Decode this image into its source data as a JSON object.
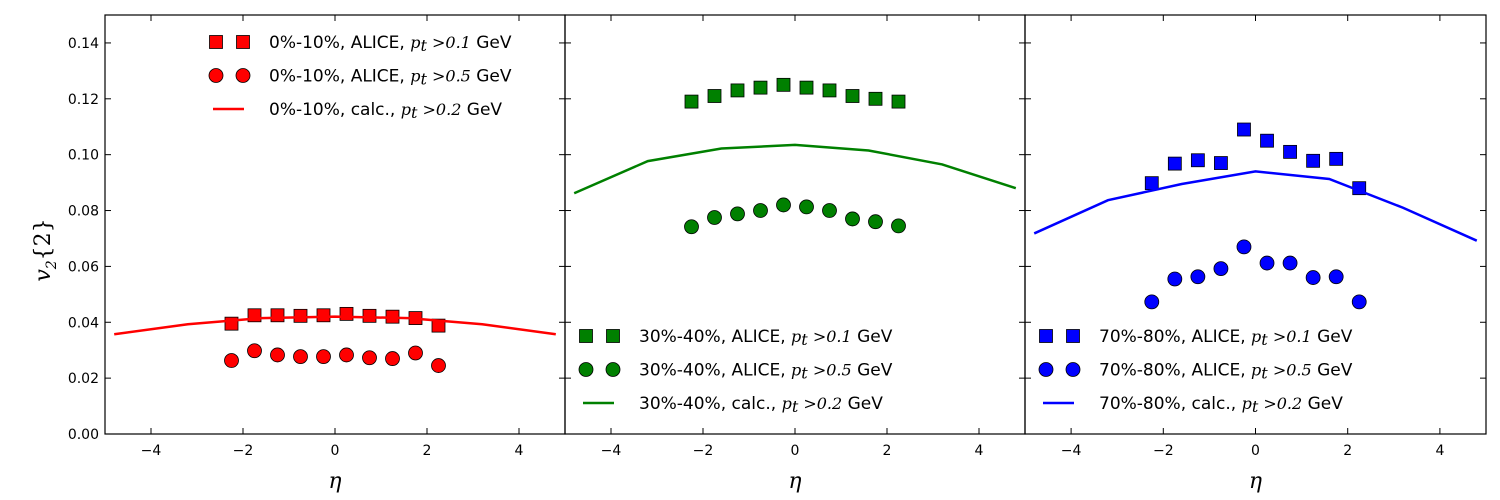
{
  "chart_data": {
    "type": "scatter",
    "ylabel": "v2{2}",
    "ylabel_parts": {
      "main": "v",
      "sub": "2",
      "braces": "{2}"
    },
    "xlabel": "η",
    "xlim": [
      -5,
      5
    ],
    "ylim": [
      0,
      0.15
    ],
    "yticks": [
      "0.00",
      "0.02",
      "0.04",
      "0.06",
      "0.08",
      "0.10",
      "0.12",
      "0.14"
    ],
    "xticks": [
      "−4",
      "−2",
      "0",
      "2",
      "4"
    ],
    "grid": false,
    "panels": [
      {
        "color": "#ff0000",
        "legend_position": "top-right",
        "series": [
          {
            "name": "0%-10%, ALICE, p_t >0.1 GeV",
            "legend": {
              "prefix": "0%-10%, ALICE, ",
              "var": "p",
              "sub": "t",
              "cond": " >0.1",
              "unit": " GeV"
            },
            "marker": "square",
            "x": [
              -2.25,
              -1.75,
              -1.25,
              -0.75,
              -0.25,
              0.25,
              0.75,
              1.25,
              1.75,
              2.25
            ],
            "y": [
              0.0395,
              0.0425,
              0.0425,
              0.0423,
              0.0425,
              0.043,
              0.0423,
              0.042,
              0.0415,
              0.0388
            ]
          },
          {
            "name": "0%-10%, ALICE, p_t >0.5 GeV",
            "legend": {
              "prefix": "0%-10%, ALICE, ",
              "var": "p",
              "sub": "t",
              "cond": " >0.5",
              "unit": " GeV"
            },
            "marker": "circle",
            "x": [
              -2.25,
              -1.75,
              -1.25,
              -0.75,
              -0.25,
              0.25,
              0.75,
              1.25,
              1.75,
              2.25
            ],
            "y": [
              0.0263,
              0.0298,
              0.0283,
              0.0277,
              0.0277,
              0.0283,
              0.0273,
              0.027,
              0.029,
              0.0245
            ]
          },
          {
            "name": "0%-10%, calc., p_t >0.2 GeV",
            "legend": {
              "prefix": "0%-10%, calc., ",
              "var": "p",
              "sub": "t",
              "cond": " >0.2",
              "unit": " GeV"
            },
            "marker": "line",
            "x": [
              -4.8,
              -3.2,
              -1.6,
              0,
              1.6,
              3.2,
              4.8
            ],
            "y": [
              0.0357,
              0.0393,
              0.0415,
              0.042,
              0.0415,
              0.0393,
              0.0357
            ]
          }
        ]
      },
      {
        "color": "#008000",
        "legend_position": "bottom-left",
        "series": [
          {
            "name": "30%-40%, ALICE, p_t >0.1 GeV",
            "legend": {
              "prefix": "30%-40%, ALICE, ",
              "var": "p",
              "sub": "t",
              "cond": " >0.1",
              "unit": " GeV"
            },
            "marker": "square",
            "x": [
              -2.25,
              -1.75,
              -1.25,
              -0.75,
              -0.25,
              0.25,
              0.75,
              1.25,
              1.75,
              2.25
            ],
            "y": [
              0.119,
              0.121,
              0.123,
              0.124,
              0.125,
              0.124,
              0.123,
              0.121,
              0.12,
              0.119
            ]
          },
          {
            "name": "30%-40%, ALICE, p_t >0.5 GeV",
            "legend": {
              "prefix": "30%-40%, ALICE, ",
              "var": "p",
              "sub": "t",
              "cond": " >0.5",
              "unit": " GeV"
            },
            "marker": "circle",
            "x": [
              -2.25,
              -1.75,
              -1.25,
              -0.75,
              -0.25,
              0.25,
              0.75,
              1.25,
              1.75,
              2.25
            ],
            "y": [
              0.0742,
              0.0775,
              0.0788,
              0.08,
              0.082,
              0.0813,
              0.08,
              0.077,
              0.076,
              0.0745
            ]
          },
          {
            "name": "30%-40%, calc., p_t >0.2 GeV",
            "legend": {
              "prefix": "30%-40%, calc., ",
              "var": "p",
              "sub": "t",
              "cond": " >0.2",
              "unit": " GeV"
            },
            "marker": "line",
            "x": [
              -4.8,
              -3.2,
              -1.6,
              0,
              1.6,
              3.2,
              4.8
            ],
            "y": [
              0.0862,
              0.0977,
              0.1022,
              0.1035,
              0.1015,
              0.0965,
              0.088
            ]
          }
        ]
      },
      {
        "color": "#0000ff",
        "legend_position": "bottom-left",
        "series": [
          {
            "name": "70%-80%, ALICE, p_t >0.1 GeV",
            "legend": {
              "prefix": "70%-80%, ALICE, ",
              "var": "p",
              "sub": "t",
              "cond": " >0.1",
              "unit": " GeV"
            },
            "marker": "square",
            "x": [
              -2.25,
              -1.75,
              -1.25,
              -0.75,
              -0.25,
              0.25,
              0.75,
              1.25,
              1.75,
              2.25
            ],
            "y": [
              0.0898,
              0.0968,
              0.098,
              0.097,
              0.109,
              0.105,
              0.101,
              0.0978,
              0.0985,
              0.088
            ]
          },
          {
            "name": "70%-80%, ALICE, p_t >0.5 GeV",
            "legend": {
              "prefix": "70%-80%, ALICE, ",
              "var": "p",
              "sub": "t",
              "cond": " >0.5",
              "unit": " GeV"
            },
            "marker": "circle",
            "x": [
              -2.25,
              -1.75,
              -1.25,
              -0.75,
              -0.25,
              0.25,
              0.75,
              1.25,
              1.75,
              2.25
            ],
            "y": [
              0.0473,
              0.0555,
              0.0563,
              0.0592,
              0.067,
              0.0612,
              0.0612,
              0.056,
              0.0563,
              0.0473
            ]
          },
          {
            "name": "70%-80%, calc., p_t >0.2 GeV",
            "legend": {
              "prefix": "70%-80%, calc., ",
              "var": "p",
              "sub": "t",
              "cond": " >0.2",
              "unit": " GeV"
            },
            "marker": "line",
            "x": [
              -4.8,
              -3.2,
              -1.6,
              0,
              1.6,
              3.2,
              4.8
            ],
            "y": [
              0.0718,
              0.0837,
              0.0895,
              0.094,
              0.0913,
              0.081,
              0.0692
            ]
          }
        ]
      }
    ]
  }
}
